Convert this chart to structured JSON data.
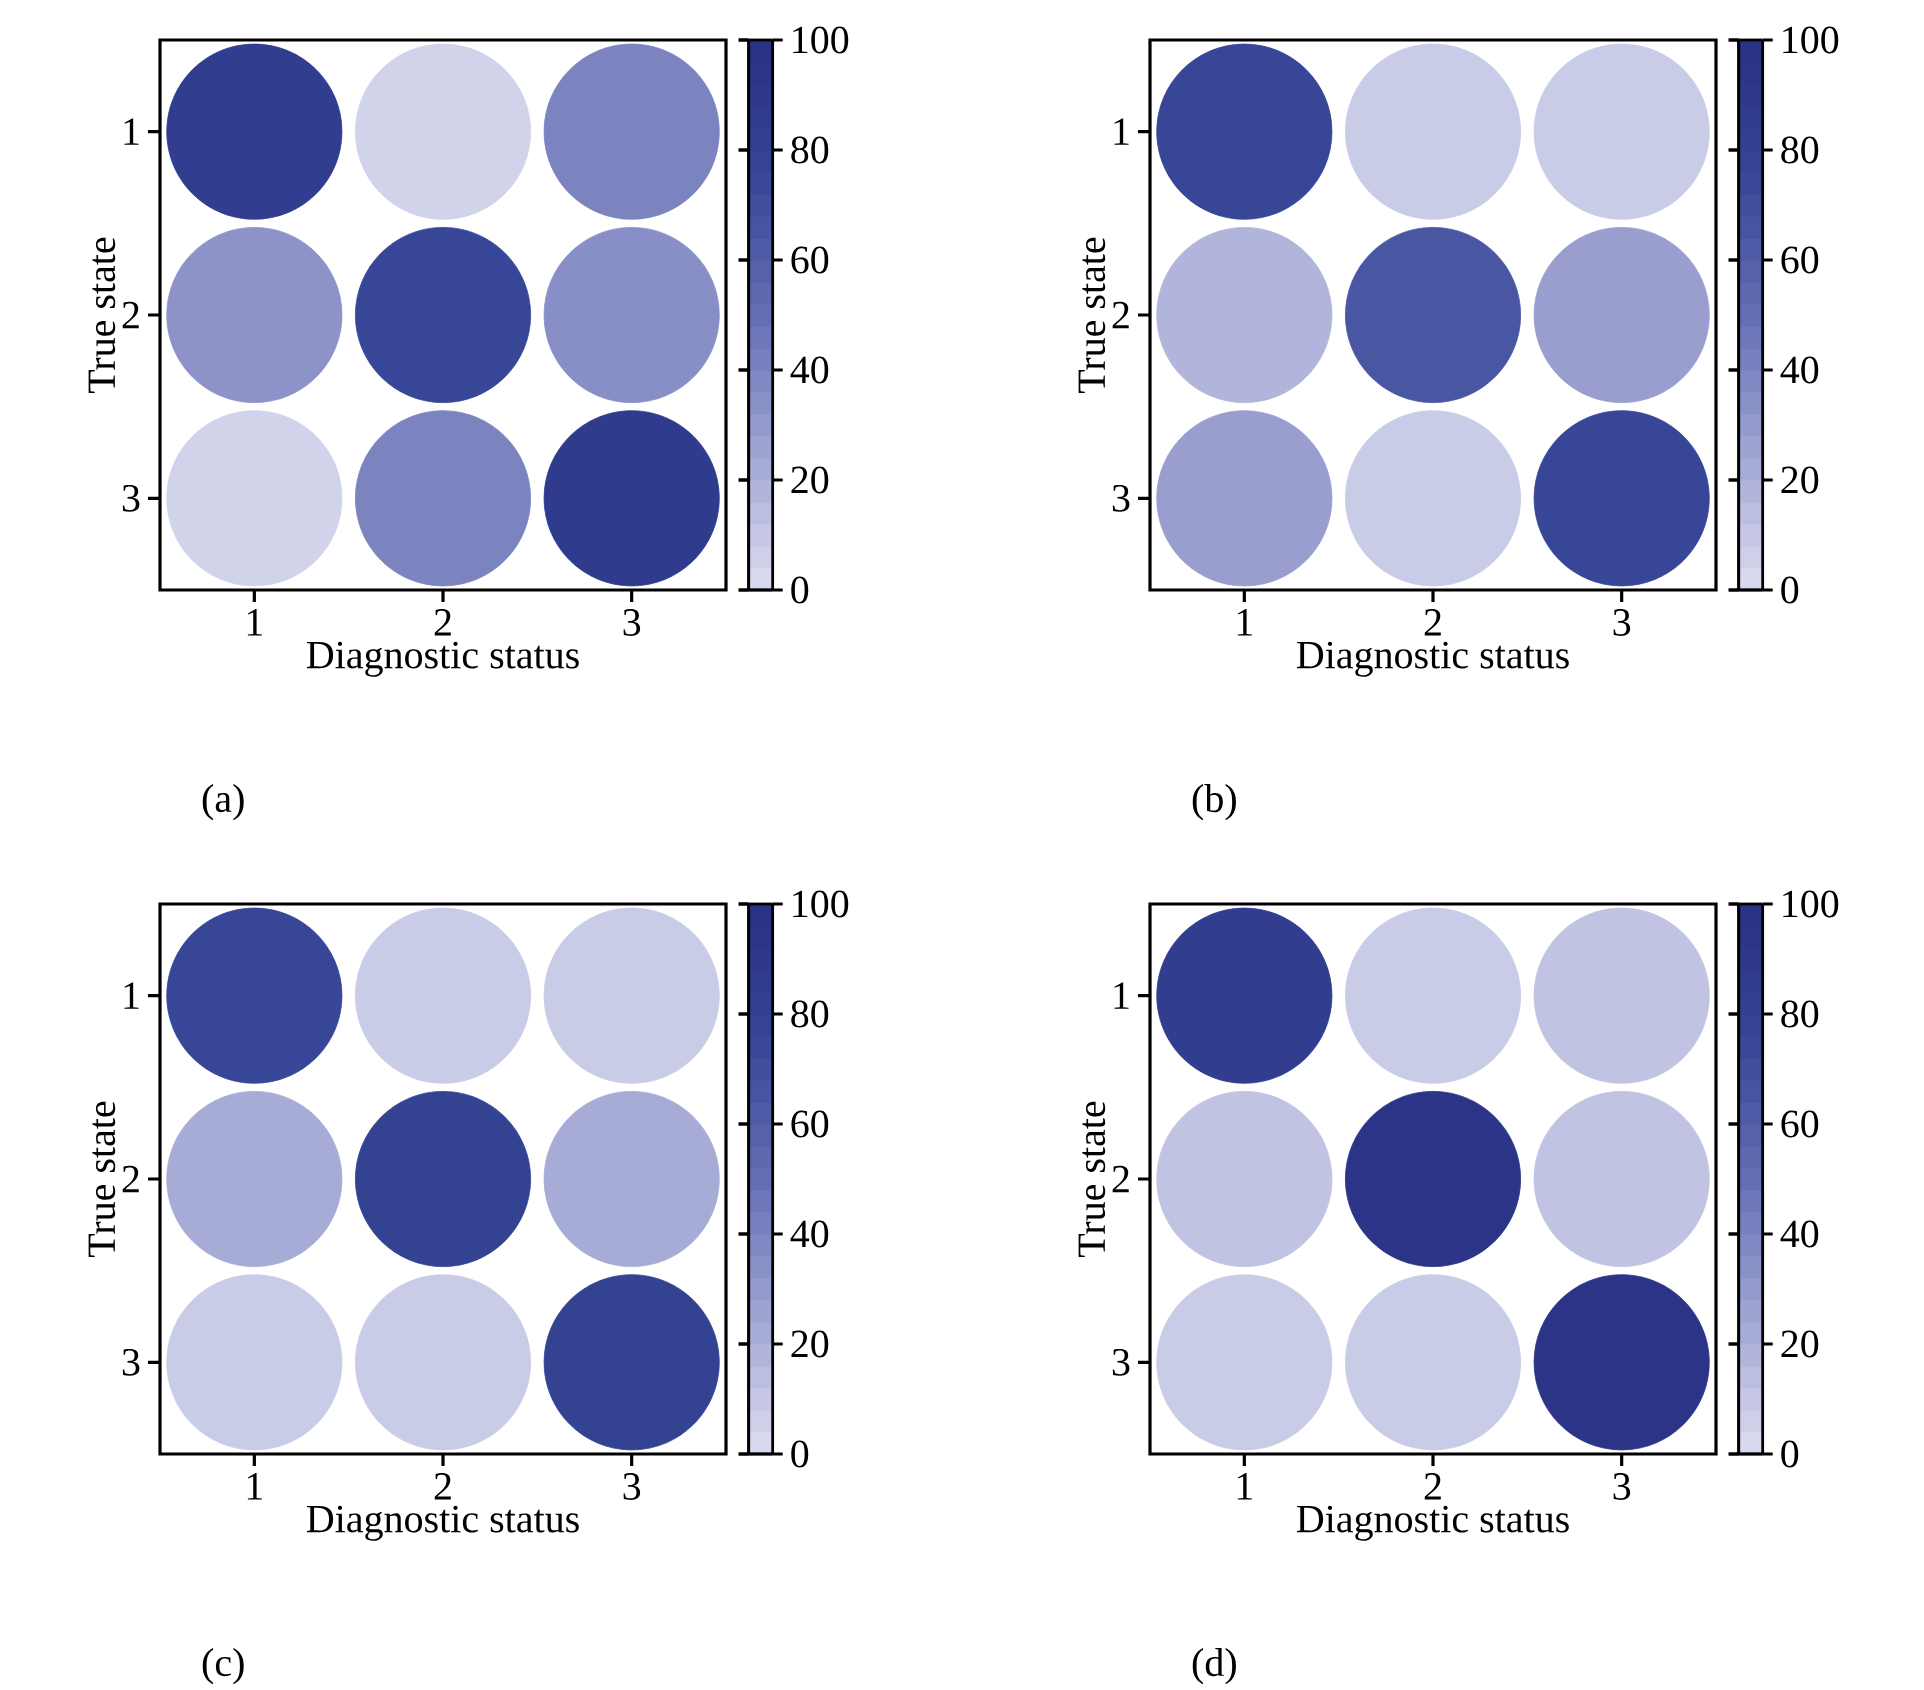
{
  "chart_data": [
    {
      "type": "scatter",
      "marker": "circle",
      "xlabel": "Diagnostic status",
      "ylabel": "True state",
      "xlim": [
        0.5,
        3.5
      ],
      "xticks": [
        1,
        2,
        3
      ],
      "ylim": [
        3.5,
        0.5
      ],
      "yticks": [
        1,
        2,
        3
      ],
      "x": [
        1,
        2,
        3,
        1,
        2,
        3,
        1,
        2,
        3
      ],
      "values": [
        1,
        1,
        1,
        2,
        2,
        2,
        3,
        3,
        3
      ],
      "cvalues": [
        85,
        5,
        40,
        33,
        75,
        35,
        5,
        40,
        88
      ],
      "clim": [
        0,
        100
      ],
      "cticks": [
        0,
        20,
        40,
        60,
        80,
        100
      ],
      "annotations": [
        "(a)"
      ]
    },
    {
      "type": "scatter",
      "marker": "circle",
      "xlabel": "Diagnostic status",
      "ylabel": "True state",
      "xlim": [
        0.5,
        3.5
      ],
      "xticks": [
        1,
        2,
        3
      ],
      "ylim": [
        3.5,
        0.5
      ],
      "yticks": [
        1,
        2,
        3
      ],
      "x": [
        1,
        2,
        3,
        1,
        2,
        3,
        1,
        2,
        3
      ],
      "values": [
        1,
        1,
        1,
        2,
        2,
        2,
        3,
        3,
        3
      ],
      "cvalues": [
        75,
        8,
        8,
        18,
        65,
        28,
        28,
        8,
        75
      ],
      "clim": [
        0,
        100
      ],
      "cticks": [
        0,
        20,
        40,
        60,
        80,
        100
      ],
      "annotations": [
        "(b)"
      ]
    },
    {
      "type": "scatter",
      "marker": "circle",
      "xlabel": "Diagnostic status",
      "ylabel": "True state",
      "xlim": [
        0.5,
        3.5
      ],
      "xticks": [
        1,
        2,
        3
      ],
      "ylim": [
        3.5,
        0.5
      ],
      "yticks": [
        1,
        2,
        3
      ],
      "x": [
        1,
        2,
        3,
        1,
        2,
        3,
        1,
        2,
        3
      ],
      "values": [
        1,
        1,
        1,
        2,
        2,
        2,
        3,
        3,
        3
      ],
      "cvalues": [
        75,
        8,
        8,
        22,
        80,
        22,
        8,
        8,
        80
      ],
      "clim": [
        0,
        100
      ],
      "cticks": [
        0,
        20,
        40,
        60,
        80,
        100
      ],
      "annotations": [
        "(c)"
      ]
    },
    {
      "type": "scatter",
      "marker": "circle",
      "xlabel": "Diagnostic status",
      "ylabel": "True state",
      "xlim": [
        0.5,
        3.5
      ],
      "xticks": [
        1,
        2,
        3
      ],
      "ylim": [
        3.5,
        0.5
      ],
      "yticks": [
        1,
        2,
        3
      ],
      "x": [
        1,
        2,
        3,
        1,
        2,
        3,
        1,
        2,
        3
      ],
      "values": [
        1,
        1,
        1,
        2,
        2,
        2,
        3,
        3,
        3
      ],
      "cvalues": [
        85,
        8,
        12,
        12,
        95,
        12,
        8,
        8,
        95
      ],
      "clim": [
        0,
        100
      ],
      "cticks": [
        0,
        20,
        40,
        60,
        80,
        100
      ],
      "annotations": [
        "(d)"
      ]
    }
  ]
}
